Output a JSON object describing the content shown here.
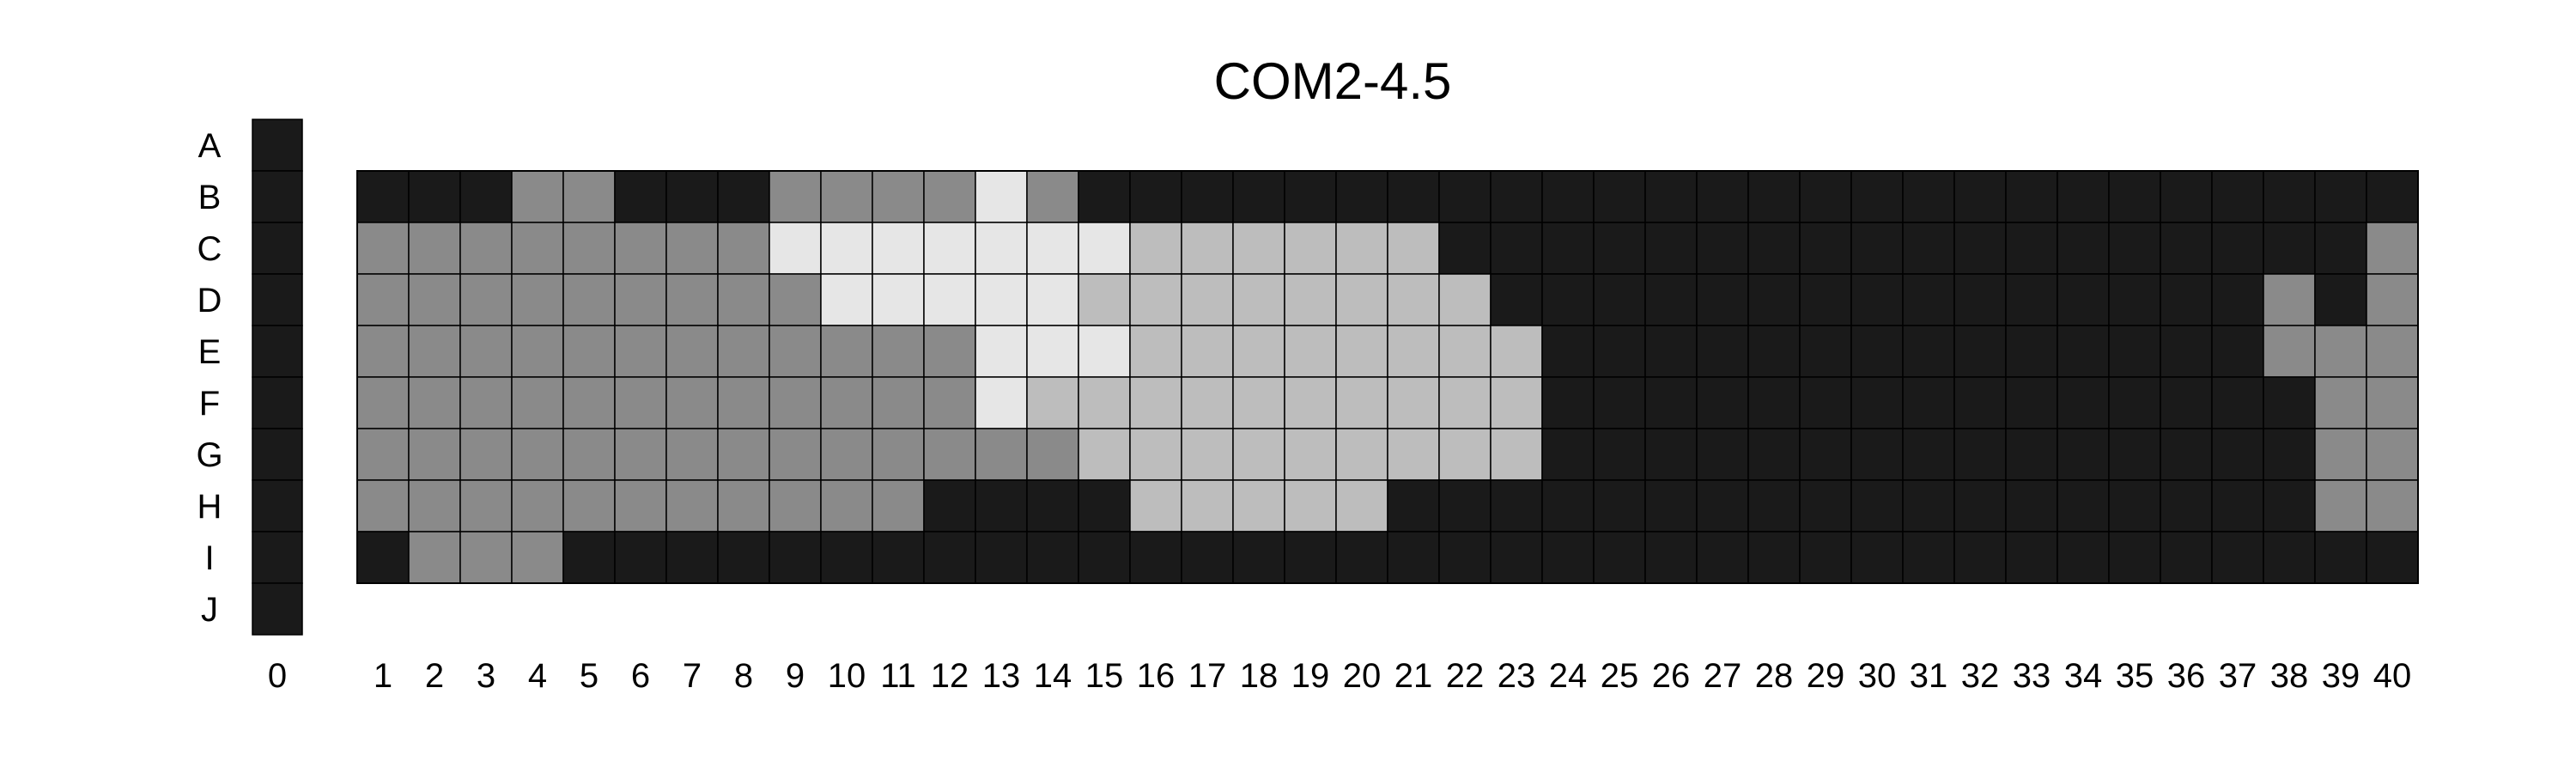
{
  "chart_data": {
    "type": "heatmap",
    "title": "COM2-4.5",
    "row_labels": [
      "A",
      "B",
      "C",
      "D",
      "E",
      "F",
      "G",
      "H",
      "I",
      "J"
    ],
    "column_zero": {
      "label": "0",
      "rows": [
        "A",
        "B",
        "C",
        "D",
        "E",
        "F",
        "G",
        "H",
        "I",
        "J"
      ],
      "value": 0
    },
    "columns": [
      1,
      2,
      3,
      4,
      5,
      6,
      7,
      8,
      9,
      10,
      11,
      12,
      13,
      14,
      15,
      16,
      17,
      18,
      19,
      20,
      21,
      22,
      23,
      24,
      25,
      26,
      27,
      28,
      29,
      30,
      31,
      32,
      33,
      34,
      35,
      36,
      37,
      38,
      39,
      40
    ],
    "grid_rows": [
      "B",
      "C",
      "D",
      "E",
      "F",
      "G",
      "H",
      "I"
    ],
    "grid_on": true,
    "level_colors": {
      "0": "#1a1a1a",
      "1": "#8a8a8a",
      "2": "#bdbdbd",
      "3": "#e6e6e6"
    },
    "values": [
      [
        0,
        0,
        0,
        1,
        1,
        0,
        0,
        0,
        1,
        1,
        1,
        1,
        3,
        1,
        0,
        0,
        0,
        0,
        0,
        0,
        0,
        0,
        0,
        0,
        0,
        0,
        0,
        0,
        0,
        0,
        0,
        0,
        0,
        0,
        0,
        0,
        0,
        0,
        0,
        0
      ],
      [
        1,
        1,
        1,
        1,
        1,
        1,
        1,
        1,
        3,
        3,
        3,
        3,
        3,
        3,
        3,
        2,
        2,
        2,
        2,
        2,
        2,
        0,
        0,
        0,
        0,
        0,
        0,
        0,
        0,
        0,
        0,
        0,
        0,
        0,
        0,
        0,
        0,
        0,
        0,
        1
      ],
      [
        1,
        1,
        1,
        1,
        1,
        1,
        1,
        1,
        1,
        3,
        3,
        3,
        3,
        3,
        2,
        2,
        2,
        2,
        2,
        2,
        2,
        2,
        0,
        0,
        0,
        0,
        0,
        0,
        0,
        0,
        0,
        0,
        0,
        0,
        0,
        0,
        0,
        1,
        0,
        1
      ],
      [
        1,
        1,
        1,
        1,
        1,
        1,
        1,
        1,
        1,
        1,
        1,
        1,
        3,
        3,
        3,
        2,
        2,
        2,
        2,
        2,
        2,
        2,
        2,
        0,
        0,
        0,
        0,
        0,
        0,
        0,
        0,
        0,
        0,
        0,
        0,
        0,
        0,
        1,
        1,
        1
      ],
      [
        1,
        1,
        1,
        1,
        1,
        1,
        1,
        1,
        1,
        1,
        1,
        1,
        3,
        2,
        2,
        2,
        2,
        2,
        2,
        2,
        2,
        2,
        2,
        0,
        0,
        0,
        0,
        0,
        0,
        0,
        0,
        0,
        0,
        0,
        0,
        0,
        0,
        0,
        1,
        1
      ],
      [
        1,
        1,
        1,
        1,
        1,
        1,
        1,
        1,
        1,
        1,
        1,
        1,
        1,
        1,
        2,
        2,
        2,
        2,
        2,
        2,
        2,
        2,
        2,
        0,
        0,
        0,
        0,
        0,
        0,
        0,
        0,
        0,
        0,
        0,
        0,
        0,
        0,
        0,
        1,
        1
      ],
      [
        1,
        1,
        1,
        1,
        1,
        1,
        1,
        1,
        1,
        1,
        1,
        0,
        0,
        0,
        0,
        2,
        2,
        2,
        2,
        2,
        0,
        0,
        0,
        0,
        0,
        0,
        0,
        0,
        0,
        0,
        0,
        0,
        0,
        0,
        0,
        0,
        0,
        0,
        1,
        1
      ],
      [
        0,
        1,
        1,
        1,
        0,
        0,
        0,
        0,
        0,
        0,
        0,
        0,
        0,
        0,
        0,
        0,
        0,
        0,
        0,
        0,
        0,
        0,
        0,
        0,
        0,
        0,
        0,
        0,
        0,
        0,
        0,
        0,
        0,
        0,
        0,
        0,
        0,
        0,
        0,
        0
      ]
    ]
  }
}
